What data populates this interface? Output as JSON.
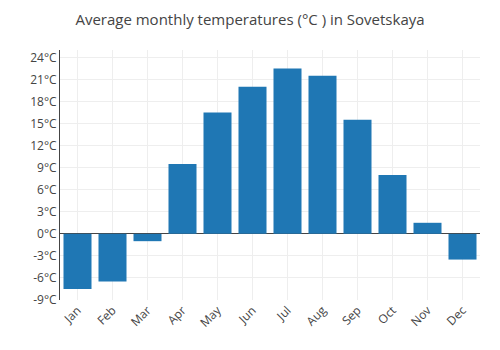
{
  "chart_data": {
    "type": "bar",
    "title": "Average monthly temperatures (°C ) in Sovetskaya",
    "categories": [
      "Jan",
      "Feb",
      "Mar",
      "Apr",
      "May",
      "Jun",
      "Jul",
      "Aug",
      "Sep",
      "Oct",
      "Nov",
      "Dec"
    ],
    "values": [
      -7.5,
      -6.5,
      -1.0,
      9.5,
      16.5,
      20.0,
      22.5,
      21.5,
      15.5,
      8.0,
      1.5,
      -3.5
    ],
    "ylim": [
      -9,
      25
    ],
    "yticks": [
      {
        "value": -9,
        "label": "-9°C"
      },
      {
        "value": -6,
        "label": "-6°C"
      },
      {
        "value": -3,
        "label": "-3°C"
      },
      {
        "value": 0,
        "label": "0°C"
      },
      {
        "value": 3,
        "label": "3°C"
      },
      {
        "value": 6,
        "label": "6°C"
      },
      {
        "value": 9,
        "label": "9°C"
      },
      {
        "value": 12,
        "label": "12°C"
      },
      {
        "value": 15,
        "label": "15°C"
      },
      {
        "value": 18,
        "label": "18°C"
      },
      {
        "value": 21,
        "label": "21°C"
      },
      {
        "value": 24,
        "label": "24°C"
      }
    ],
    "grid": true
  }
}
